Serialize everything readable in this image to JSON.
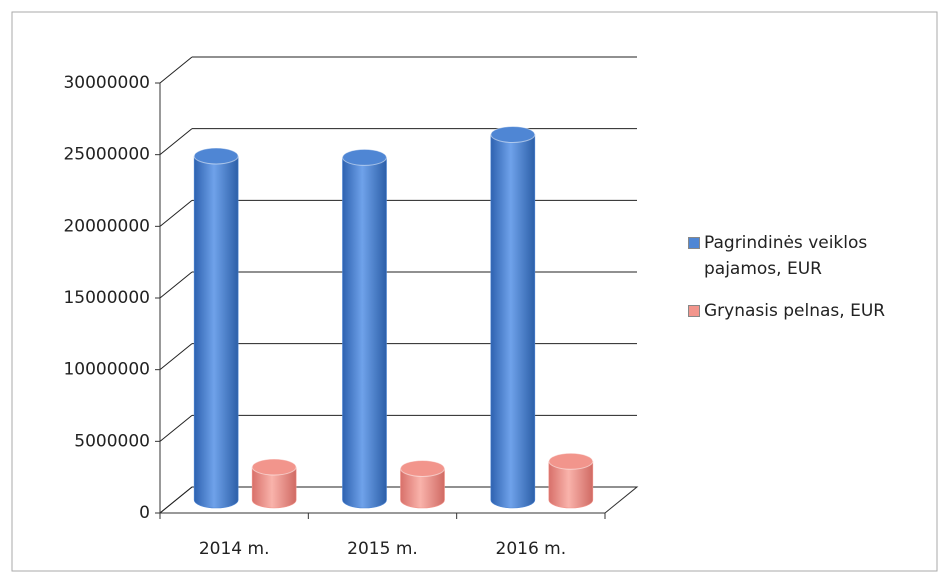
{
  "chart_data": {
    "type": "bar3d",
    "categories": [
      "2014 m.",
      "2015 m.",
      "2016 m."
    ],
    "series": [
      {
        "name": "Pagrindinės veiklos pajamos, EUR",
        "color": "#4f86d4",
        "values": [
          24000000,
          23900000,
          25500000
        ]
      },
      {
        "name": "Grynasis pelnas, EUR",
        "color": "#f2958c",
        "values": [
          2300000,
          2200000,
          2700000
        ]
      }
    ],
    "ylim": [
      0,
      30000000
    ],
    "yticks": [
      0,
      5000000,
      10000000,
      15000000,
      20000000,
      25000000,
      30000000
    ],
    "grid": true,
    "legend": "right"
  }
}
